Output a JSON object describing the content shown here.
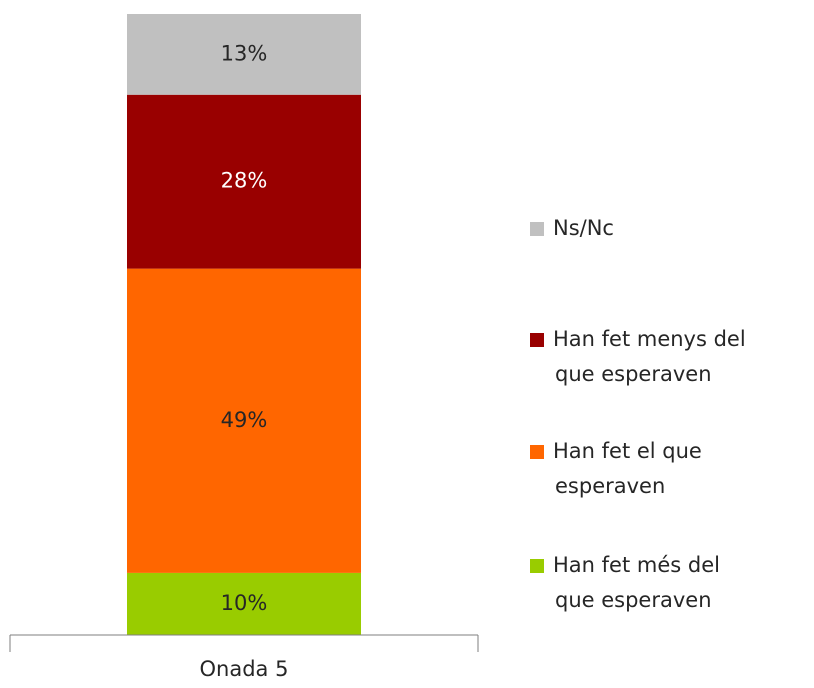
{
  "chart_data": {
    "type": "stacked_bar",
    "categories": [
      "Onada 5"
    ],
    "ylim": [
      0,
      100
    ],
    "series": [
      {
        "name": "Han fet més del que esperaven",
        "color": "#99cc00",
        "values": [
          10
        ],
        "value_labels": [
          "10%"
        ]
      },
      {
        "name": "Han fet el que esperaven",
        "color": "#ff6600",
        "values": [
          49
        ],
        "value_labels": [
          "49%"
        ]
      },
      {
        "name": "Han fet menys del que esperaven",
        "color": "#990000",
        "values": [
          28
        ],
        "value_labels": [
          "28%"
        ]
      },
      {
        "name": "Ns/Nc",
        "color": "#c0c0c0",
        "values": [
          13
        ],
        "value_labels": [
          "13%"
        ]
      }
    ]
  }
}
